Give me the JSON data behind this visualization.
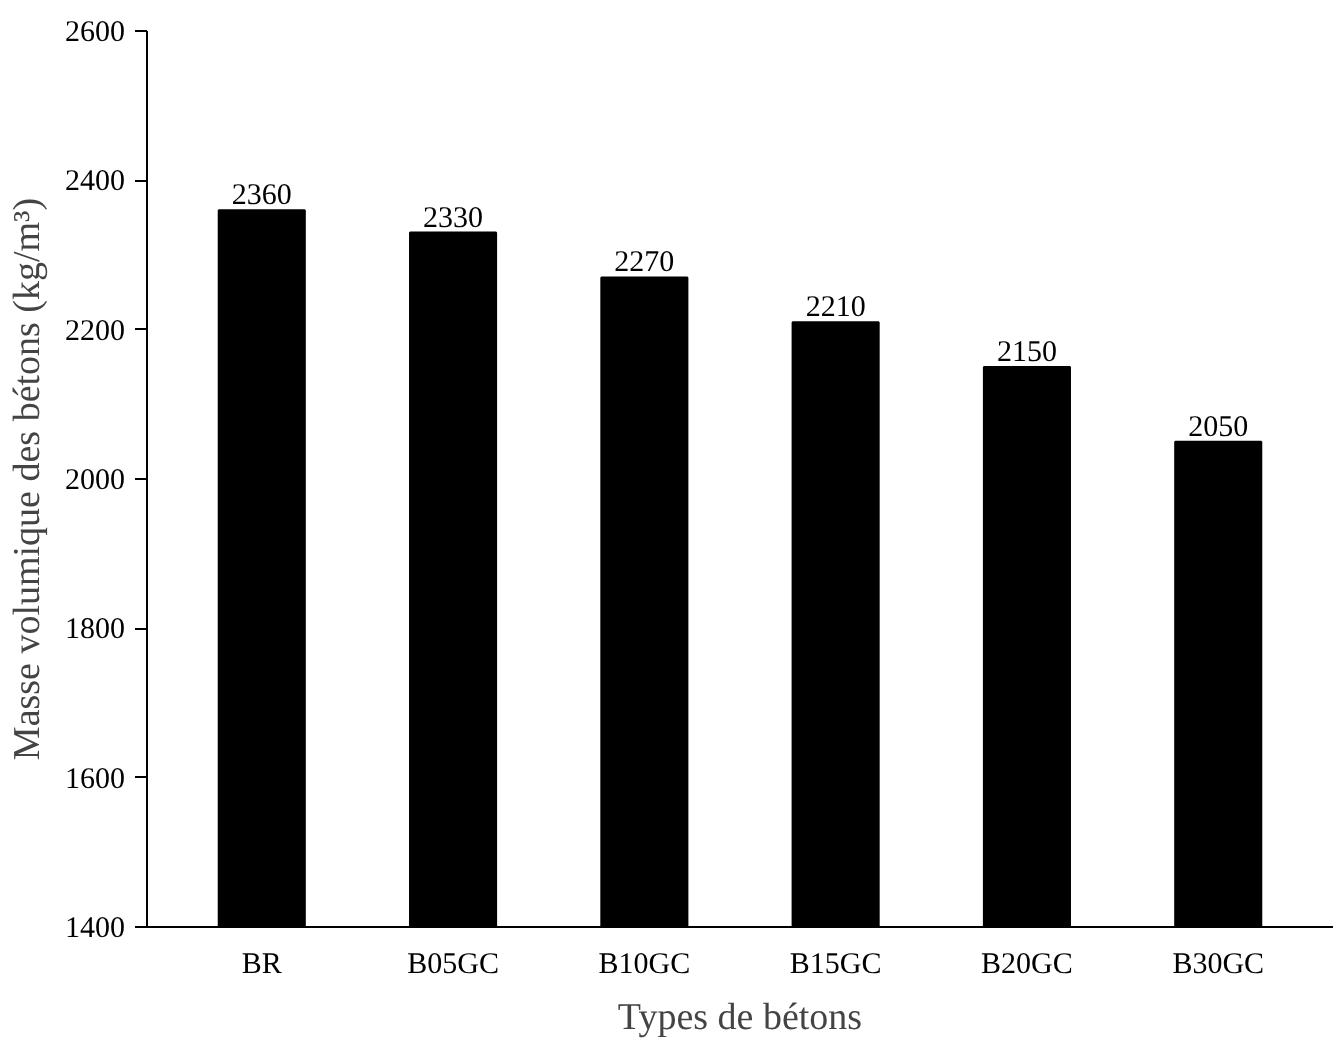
{
  "chart_data": {
    "type": "bar",
    "xlabel": "Types de bétons",
    "ylabel": "Masse volumique des bétons (kg/m³)",
    "categories": [
      "BR",
      "B05GC",
      "B10GC",
      "B15GC",
      "B20GC",
      "B30GC"
    ],
    "values": [
      2360,
      2330,
      2270,
      2210,
      2150,
      2050
    ],
    "color": "#000000",
    "ylim": [
      1400,
      2600
    ],
    "yticks": [
      1400,
      1600,
      1800,
      2000,
      2200,
      2400,
      2600
    ],
    "grid": false,
    "data_labels": true
  }
}
